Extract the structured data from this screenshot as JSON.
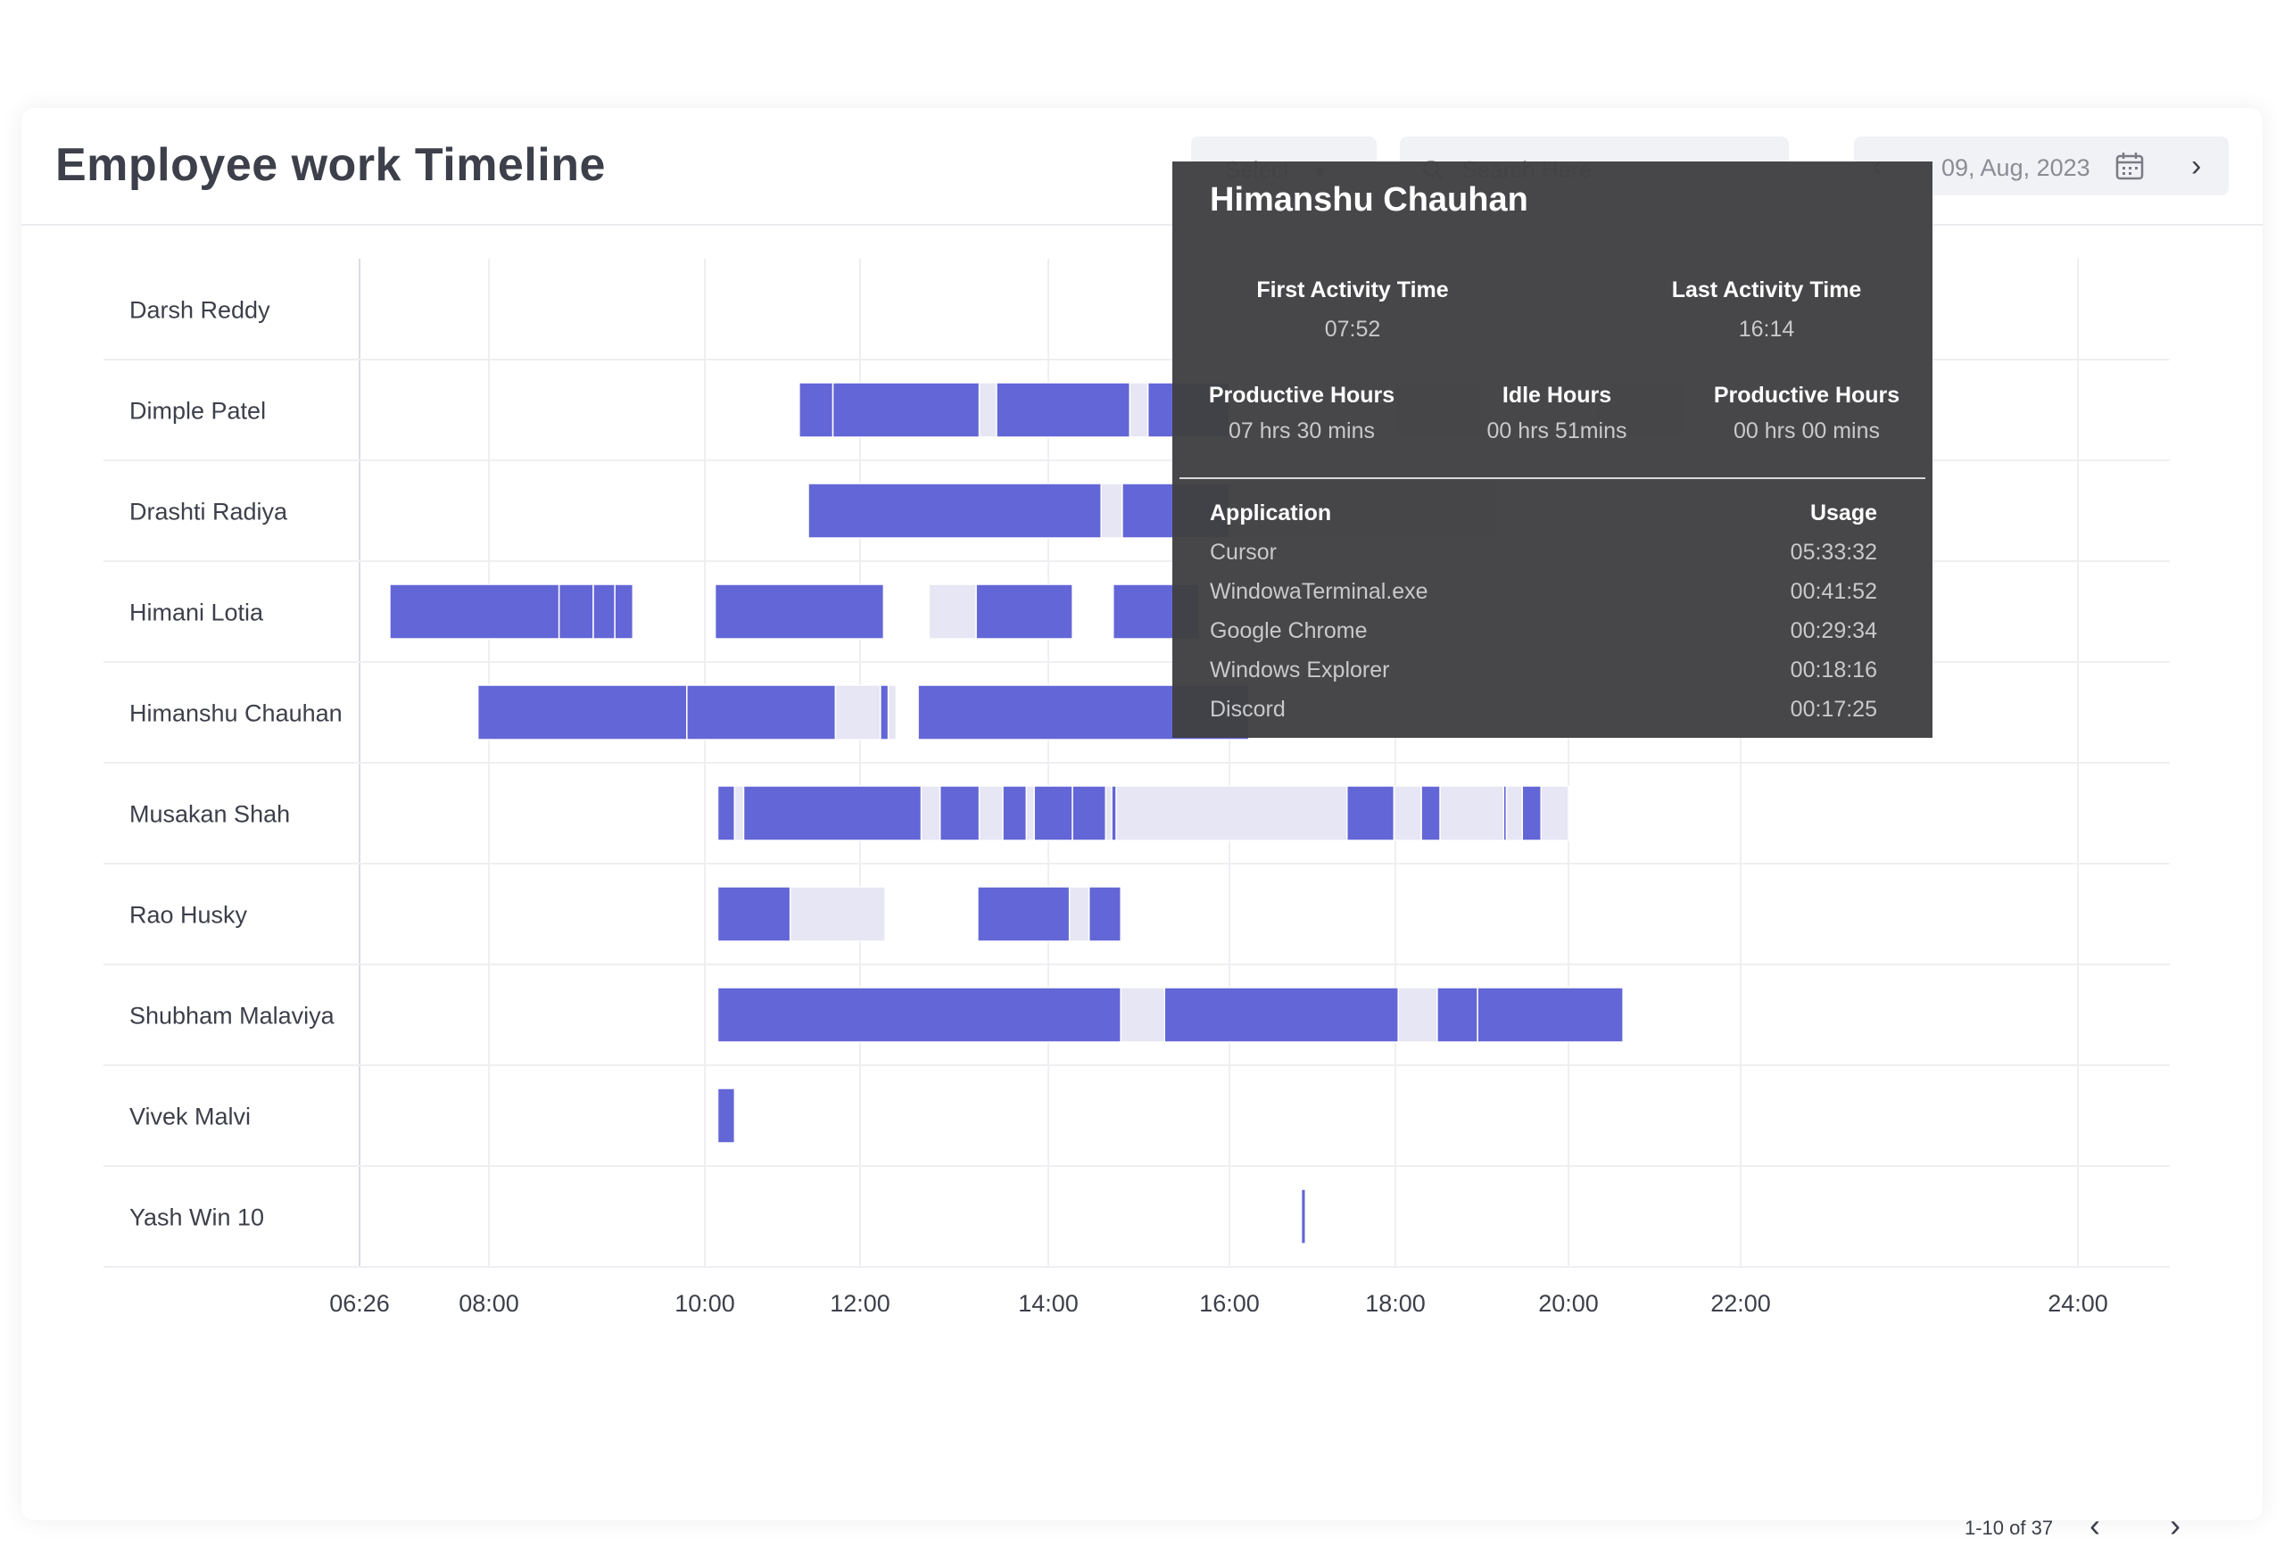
{
  "page": {
    "title": "Employee work Timeline",
    "select_label": "Select",
    "search_placeholder": "Search Here",
    "date": "09, Aug, 2023",
    "pagination": "1-10 of 37"
  },
  "colors": {
    "active": "#6366d6",
    "idle": "#e6e6f4",
    "grid": "#efeff3",
    "axis_text": "#3d3f4a"
  },
  "icons": [
    "chevron-down-icon",
    "search-icon",
    "chevron-left-icon",
    "calendar-icon",
    "chevron-right-icon"
  ],
  "tooltip": {
    "name": "Himanshu Chauhan",
    "first_activity_label": "First Activity Time",
    "first_activity": "07:52",
    "last_activity_label": "Last Activity Time",
    "last_activity": "16:14",
    "productive_label": "Productive Hours",
    "productive": "07 hrs 30 mins",
    "idle_label": "Idle Hours",
    "idle": "00 hrs 51mins",
    "productive2_label": "Productive Hours",
    "productive2": "00 hrs 00 mins",
    "app_header": "Application",
    "usage_header": "Usage",
    "apps": [
      {
        "name": "Cursor",
        "usage": "05:33:32"
      },
      {
        "name": "WindowaTerminal.exe",
        "usage": "00:41:52"
      },
      {
        "name": "Google Chrome",
        "usage": "00:29:34"
      },
      {
        "name": "Windows Explorer",
        "usage": "00:18:16"
      },
      {
        "name": "Discord",
        "usage": "00:17:25"
      }
    ]
  },
  "chart_data": {
    "type": "timeline",
    "x_tick_labels": [
      "06:26",
      "08:00",
      "10:00",
      "12:00",
      "14:00",
      "16:00",
      "18:00",
      "20:00",
      "22:00",
      "24:00"
    ],
    "categories": [
      "Darsh Reddy",
      "Dimple Patel",
      "Drashti Radiya",
      "Himani Lotia",
      "Himanshu Chauhan",
      "Musakan Shah",
      "Rao Husky",
      "Shubham Malaviya",
      "Vivek Malvi",
      "Yash Win 10"
    ],
    "series": [
      {
        "name": "Darsh Reddy",
        "segments": []
      },
      {
        "name": "Dimple Patel",
        "segments": [
          {
            "state": "active",
            "start": "11:13",
            "end": "11:39"
          },
          {
            "state": "active",
            "start": "11:39",
            "end": "13:16"
          },
          {
            "state": "idle",
            "start": "13:16",
            "end": "13:27"
          },
          {
            "state": "active",
            "start": "13:27",
            "end": "14:54"
          },
          {
            "state": "idle",
            "start": "14:54",
            "end": "15:06"
          },
          {
            "state": "active",
            "start": "15:06",
            "end": "16:00"
          },
          {
            "state": "idle",
            "start": "18:00",
            "end": "19:00"
          },
          {
            "state": "idle",
            "start": "20:20",
            "end": "21:20"
          }
        ]
      },
      {
        "name": "Drashti Radiya",
        "segments": [
          {
            "state": "active",
            "start": "11:20",
            "end": "14:35"
          },
          {
            "state": "idle",
            "start": "14:35",
            "end": "14:49"
          },
          {
            "state": "active",
            "start": "14:49",
            "end": "16:00"
          },
          {
            "state": "idle",
            "start": "16:00",
            "end": "19:10"
          }
        ]
      },
      {
        "name": "Himani Lotia",
        "segments": [
          {
            "state": "active",
            "start": "06:48",
            "end": "08:39"
          },
          {
            "state": "active",
            "start": "08:39",
            "end": "08:58"
          },
          {
            "state": "active",
            "start": "08:58",
            "end": "09:10"
          },
          {
            "state": "active",
            "start": "09:10",
            "end": "09:20"
          },
          {
            "state": "active",
            "start": "10:08",
            "end": "12:15"
          },
          {
            "state": "idle",
            "start": "12:44",
            "end": "13:14"
          },
          {
            "state": "active",
            "start": "13:14",
            "end": "14:16"
          },
          {
            "state": "active",
            "start": "14:43",
            "end": "15:40"
          }
        ]
      },
      {
        "name": "Himanshu Chauhan",
        "segments": [
          {
            "state": "active",
            "start": "07:52",
            "end": "09:50"
          },
          {
            "state": "active",
            "start": "09:50",
            "end": "11:41"
          },
          {
            "state": "idle",
            "start": "11:41",
            "end": "12:13"
          },
          {
            "state": "active",
            "start": "12:13",
            "end": "12:18"
          },
          {
            "state": "idle",
            "start": "12:18",
            "end": "12:23"
          },
          {
            "state": "active",
            "start": "12:37",
            "end": "16:14"
          }
        ]
      },
      {
        "name": "Musakan Shah",
        "segments": [
          {
            "state": "active",
            "start": "10:10",
            "end": "10:23"
          },
          {
            "state": "idle",
            "start": "10:23",
            "end": "10:30"
          },
          {
            "state": "active",
            "start": "10:30",
            "end": "12:39"
          },
          {
            "state": "idle",
            "start": "12:39",
            "end": "12:51"
          },
          {
            "state": "active",
            "start": "12:51",
            "end": "13:16"
          },
          {
            "state": "idle",
            "start": "13:16",
            "end": "13:31"
          },
          {
            "state": "active",
            "start": "13:31",
            "end": "13:46"
          },
          {
            "state": "idle",
            "start": "13:46",
            "end": "13:51"
          },
          {
            "state": "active",
            "start": "13:51",
            "end": "14:16"
          },
          {
            "state": "active",
            "start": "14:16",
            "end": "14:38"
          },
          {
            "state": "idle",
            "start": "14:38",
            "end": "14:42"
          },
          {
            "state": "active",
            "start": "14:42",
            "end": "14:45"
          },
          {
            "state": "idle",
            "start": "14:45",
            "end": "17:25"
          },
          {
            "state": "active",
            "start": "17:25",
            "end": "17:59"
          },
          {
            "state": "idle",
            "start": "17:59",
            "end": "18:18"
          },
          {
            "state": "active",
            "start": "18:18",
            "end": "18:31"
          },
          {
            "state": "idle",
            "start": "18:31",
            "end": "19:15"
          },
          {
            "state": "active",
            "start": "19:15",
            "end": "19:17"
          },
          {
            "state": "idle",
            "start": "19:17",
            "end": "19:28"
          },
          {
            "state": "active",
            "start": "19:28",
            "end": "19:41"
          },
          {
            "state": "idle",
            "start": "19:41",
            "end": "20:00"
          }
        ]
      },
      {
        "name": "Rao Husky",
        "segments": [
          {
            "state": "active",
            "start": "10:10",
            "end": "11:06"
          },
          {
            "state": "idle",
            "start": "11:06",
            "end": "12:16"
          },
          {
            "state": "active",
            "start": "13:15",
            "end": "14:14"
          },
          {
            "state": "idle",
            "start": "14:14",
            "end": "14:27"
          },
          {
            "state": "active",
            "start": "14:27",
            "end": "14:48"
          }
        ]
      },
      {
        "name": "Shubham Malaviya",
        "segments": [
          {
            "state": "active",
            "start": "10:10",
            "end": "14:48"
          },
          {
            "state": "idle",
            "start": "14:48",
            "end": "15:17"
          },
          {
            "state": "active",
            "start": "15:17",
            "end": "18:02"
          },
          {
            "state": "idle",
            "start": "18:02",
            "end": "18:29"
          },
          {
            "state": "active",
            "start": "18:29",
            "end": "18:57"
          },
          {
            "state": "active",
            "start": "18:57",
            "end": "20:38"
          }
        ]
      },
      {
        "name": "Vivek Malvi",
        "segments": [
          {
            "state": "active",
            "start": "10:10",
            "end": "10:23"
          }
        ]
      },
      {
        "name": "Yash Win 10",
        "segments": [
          {
            "state": "active",
            "start": "16:52",
            "end": "16:55"
          }
        ]
      }
    ]
  }
}
